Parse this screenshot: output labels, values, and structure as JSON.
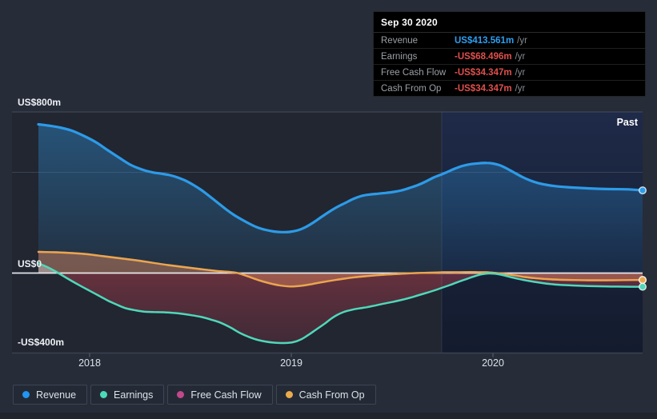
{
  "tooltip": {
    "date": "Sep 30 2020",
    "rows": [
      {
        "label": "Revenue",
        "value": "US$413.561m",
        "unit": "/yr",
        "color": "#2d9ff2"
      },
      {
        "label": "Earnings",
        "value": "-US$68.496m",
        "unit": "/yr",
        "color": "#e0504e"
      },
      {
        "label": "Free Cash Flow",
        "value": "-US$34.347m",
        "unit": "/yr",
        "color": "#e0504e"
      },
      {
        "label": "Cash From Op",
        "value": "-US$34.347m",
        "unit": "/yr",
        "color": "#e0504e"
      }
    ]
  },
  "legend": {
    "items": [
      {
        "label": "Revenue",
        "color": "#2196f3"
      },
      {
        "label": "Earnings",
        "color": "#4cd9ba"
      },
      {
        "label": "Free Cash Flow",
        "color": "#c2488c"
      },
      {
        "label": "Cash From Op",
        "color": "#e9ab4e"
      }
    ]
  },
  "chart_data": {
    "type": "area",
    "title": "",
    "past_label": "Past",
    "x_axis": {
      "labels": [
        "2018",
        "2019",
        "2020"
      ],
      "tick_years": [
        2018,
        2019,
        2020
      ],
      "range_years": [
        2017.746,
        2020.742
      ]
    },
    "y_axis": {
      "labels": [
        "US$800m",
        "US$0",
        "-US$400m"
      ],
      "labeled_values": [
        800,
        0,
        -400
      ],
      "unlabeled_gridline_value": 504,
      "unit": "US$ millions per year"
    },
    "highlight": {
      "start_year": 2019.746,
      "end_year": 2020.742
    },
    "series": [
      {
        "name": "Revenue",
        "color": "#2d9be8",
        "points": [
          [
            2017.746,
            744
          ],
          [
            2017.794,
            738
          ],
          [
            2017.853,
            728
          ],
          [
            2017.913,
            712
          ],
          [
            2017.972,
            686
          ],
          [
            2018.032,
            654
          ],
          [
            2018.091,
            614
          ],
          [
            2018.151,
            574
          ],
          [
            2018.198,
            544
          ],
          [
            2018.238,
            526
          ],
          [
            2018.278,
            512
          ],
          [
            2018.317,
            503
          ],
          [
            2018.357,
            497
          ],
          [
            2018.397,
            490
          ],
          [
            2018.437,
            478
          ],
          [
            2018.476,
            462
          ],
          [
            2018.516,
            440
          ],
          [
            2018.556,
            414
          ],
          [
            2018.595,
            384
          ],
          [
            2018.635,
            352
          ],
          [
            2018.675,
            320
          ],
          [
            2018.714,
            292
          ],
          [
            2018.754,
            268
          ],
          [
            2018.794,
            246
          ],
          [
            2018.833,
            228
          ],
          [
            2018.873,
            216
          ],
          [
            2018.913,
            208
          ],
          [
            2018.952,
            205
          ],
          [
            2018.992,
            206
          ],
          [
            2019.032,
            214
          ],
          [
            2019.071,
            230
          ],
          [
            2019.111,
            254
          ],
          [
            2019.151,
            282
          ],
          [
            2019.19,
            308
          ],
          [
            2019.23,
            332
          ],
          [
            2019.27,
            352
          ],
          [
            2019.31,
            372
          ],
          [
            2019.349,
            386
          ],
          [
            2019.389,
            393
          ],
          [
            2019.429,
            397
          ],
          [
            2019.468,
            401
          ],
          [
            2019.508,
            406
          ],
          [
            2019.548,
            414
          ],
          [
            2019.587,
            426
          ],
          [
            2019.627,
            440
          ],
          [
            2019.667,
            458
          ],
          [
            2019.706,
            478
          ],
          [
            2019.738,
            491
          ],
          [
            2019.77,
            504
          ],
          [
            2019.81,
            522
          ],
          [
            2019.849,
            536
          ],
          [
            2019.889,
            545
          ],
          [
            2019.929,
            549
          ],
          [
            2019.968,
            551
          ],
          [
            2020.0,
            548
          ],
          [
            2020.032,
            540
          ],
          [
            2020.063,
            526
          ],
          [
            2020.103,
            504
          ],
          [
            2020.143,
            482
          ],
          [
            2020.183,
            464
          ],
          [
            2020.222,
            451
          ],
          [
            2020.262,
            442
          ],
          [
            2020.31,
            435
          ],
          [
            2020.365,
            430
          ],
          [
            2020.433,
            426
          ],
          [
            2020.512,
            422
          ],
          [
            2020.591,
            420
          ],
          [
            2020.671,
            419
          ],
          [
            2020.742,
            413.561
          ]
        ]
      },
      {
        "name": "Earnings",
        "color": "#4fd8ba",
        "points": [
          [
            2017.746,
            49
          ],
          [
            2017.786,
            32
          ],
          [
            2017.817,
            16
          ],
          [
            2017.845,
            0
          ],
          [
            2017.885,
            -24
          ],
          [
            2017.933,
            -52
          ],
          [
            2017.984,
            -80
          ],
          [
            2018.036,
            -108
          ],
          [
            2018.087,
            -136
          ],
          [
            2018.135,
            -158
          ],
          [
            2018.179,
            -176
          ],
          [
            2018.222,
            -185
          ],
          [
            2018.27,
            -193
          ],
          [
            2018.317,
            -195
          ],
          [
            2018.365,
            -196
          ],
          [
            2018.413,
            -199
          ],
          [
            2018.46,
            -204
          ],
          [
            2018.508,
            -211
          ],
          [
            2018.556,
            -220
          ],
          [
            2018.603,
            -233
          ],
          [
            2018.651,
            -249
          ],
          [
            2018.698,
            -272
          ],
          [
            2018.746,
            -300
          ],
          [
            2018.786,
            -318
          ],
          [
            2018.825,
            -332
          ],
          [
            2018.869,
            -342
          ],
          [
            2018.913,
            -348
          ],
          [
            2018.964,
            -350
          ],
          [
            2019.008,
            -346
          ],
          [
            2019.048,
            -332
          ],
          [
            2019.087,
            -308
          ],
          [
            2019.127,
            -280
          ],
          [
            2019.167,
            -252
          ],
          [
            2019.198,
            -228
          ],
          [
            2019.23,
            -208
          ],
          [
            2019.262,
            -194
          ],
          [
            2019.294,
            -185
          ],
          [
            2019.333,
            -177
          ],
          [
            2019.373,
            -171
          ],
          [
            2019.421,
            -161
          ],
          [
            2019.468,
            -151
          ],
          [
            2019.508,
            -143
          ],
          [
            2019.548,
            -134
          ],
          [
            2019.587,
            -124
          ],
          [
            2019.627,
            -112
          ],
          [
            2019.667,
            -100
          ],
          [
            2019.706,
            -88
          ],
          [
            2019.746,
            -74
          ],
          [
            2019.786,
            -60
          ],
          [
            2019.825,
            -45
          ],
          [
            2019.865,
            -31
          ],
          [
            2019.905,
            -17
          ],
          [
            2019.944,
            -6
          ],
          [
            2019.976,
            -2
          ],
          [
            2020.008,
            -3
          ],
          [
            2020.048,
            -10
          ],
          [
            2020.087,
            -20
          ],
          [
            2020.127,
            -29
          ],
          [
            2020.167,
            -37
          ],
          [
            2020.206,
            -44
          ],
          [
            2020.246,
            -50
          ],
          [
            2020.286,
            -55
          ],
          [
            2020.333,
            -59
          ],
          [
            2020.393,
            -62
          ],
          [
            2020.472,
            -65
          ],
          [
            2020.571,
            -67
          ],
          [
            2020.651,
            -68
          ],
          [
            2020.742,
            -68.496
          ]
        ]
      },
      {
        "name": "Free Cash Flow",
        "color": "#c9508b",
        "points": [
          [
            2017.746,
            106
          ],
          [
            2017.833,
            104
          ],
          [
            2017.913,
            100
          ],
          [
            2017.992,
            94
          ],
          [
            2018.071,
            84
          ],
          [
            2018.151,
            74
          ],
          [
            2018.23,
            64
          ],
          [
            2018.31,
            52
          ],
          [
            2018.389,
            40
          ],
          [
            2018.468,
            30
          ],
          [
            2018.548,
            20
          ],
          [
            2018.627,
            11
          ],
          [
            2018.687,
            6
          ],
          [
            2018.734,
            0
          ],
          [
            2018.786,
            -17
          ],
          [
            2018.837,
            -35
          ],
          [
            2018.893,
            -51
          ],
          [
            2018.944,
            -62
          ],
          [
            2018.996,
            -67
          ],
          [
            2019.052,
            -63
          ],
          [
            2019.103,
            -55
          ],
          [
            2019.155,
            -45
          ],
          [
            2019.21,
            -36
          ],
          [
            2019.262,
            -28
          ],
          [
            2019.313,
            -21
          ],
          [
            2019.365,
            -16
          ],
          [
            2019.421,
            -11
          ],
          [
            2019.476,
            -7
          ],
          [
            2019.532,
            -4
          ],
          [
            2019.587,
            -1
          ],
          [
            2019.643,
            1
          ],
          [
            2019.698,
            2
          ],
          [
            2019.754,
            4
          ],
          [
            2019.81,
            4
          ],
          [
            2019.865,
            5
          ],
          [
            2019.921,
            5
          ],
          [
            2019.968,
            4
          ],
          [
            2020.016,
            0
          ],
          [
            2020.063,
            -5
          ],
          [
            2020.111,
            -12
          ],
          [
            2020.159,
            -20
          ],
          [
            2020.206,
            -25
          ],
          [
            2020.254,
            -29
          ],
          [
            2020.302,
            -32
          ],
          [
            2020.357,
            -34
          ],
          [
            2020.421,
            -35
          ],
          [
            2020.492,
            -36
          ],
          [
            2020.571,
            -36
          ],
          [
            2020.651,
            -35
          ],
          [
            2020.742,
            -34.347
          ]
        ]
      },
      {
        "name": "Cash From Op",
        "color": "#e9a74c",
        "points": [
          [
            2017.746,
            106
          ],
          [
            2017.833,
            104
          ],
          [
            2017.913,
            100
          ],
          [
            2017.992,
            94
          ],
          [
            2018.071,
            84
          ],
          [
            2018.151,
            74
          ],
          [
            2018.23,
            64
          ],
          [
            2018.31,
            52
          ],
          [
            2018.389,
            40
          ],
          [
            2018.468,
            30
          ],
          [
            2018.548,
            20
          ],
          [
            2018.627,
            11
          ],
          [
            2018.687,
            6
          ],
          [
            2018.734,
            0
          ],
          [
            2018.786,
            -17
          ],
          [
            2018.837,
            -35
          ],
          [
            2018.893,
            -51
          ],
          [
            2018.944,
            -62
          ],
          [
            2018.996,
            -67
          ],
          [
            2019.052,
            -63
          ],
          [
            2019.103,
            -55
          ],
          [
            2019.155,
            -45
          ],
          [
            2019.21,
            -36
          ],
          [
            2019.262,
            -28
          ],
          [
            2019.313,
            -21
          ],
          [
            2019.365,
            -16
          ],
          [
            2019.421,
            -11
          ],
          [
            2019.476,
            -7
          ],
          [
            2019.532,
            -4
          ],
          [
            2019.587,
            -1
          ],
          [
            2019.643,
            1
          ],
          [
            2019.698,
            2
          ],
          [
            2019.754,
            4
          ],
          [
            2019.81,
            4
          ],
          [
            2019.865,
            5
          ],
          [
            2019.921,
            5
          ],
          [
            2019.968,
            4
          ],
          [
            2020.016,
            0
          ],
          [
            2020.063,
            -5
          ],
          [
            2020.111,
            -12
          ],
          [
            2020.159,
            -20
          ],
          [
            2020.206,
            -25
          ],
          [
            2020.254,
            -29
          ],
          [
            2020.302,
            -32
          ],
          [
            2020.357,
            -34
          ],
          [
            2020.421,
            -35
          ],
          [
            2020.492,
            -36
          ],
          [
            2020.571,
            -36
          ],
          [
            2020.651,
            -35
          ],
          [
            2020.742,
            -34.347
          ]
        ]
      }
    ]
  },
  "colors": {
    "page_bg": "#262c38",
    "highlight_top": "#1e2a48",
    "highlight_bottom": "#131b2d",
    "gridline": "#3b4251",
    "zero_line": "#f3f5f8",
    "axis_line": "#3b4250"
  }
}
